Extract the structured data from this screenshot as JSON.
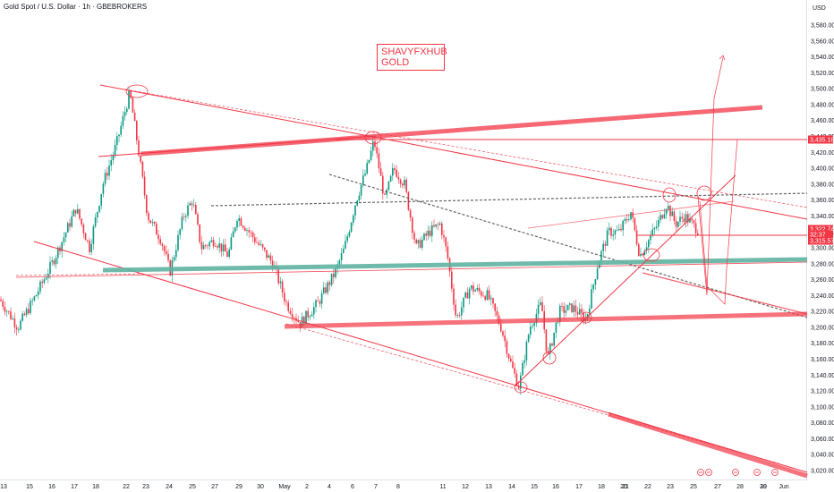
{
  "header": {
    "title": "Gold Spot / U.S. Dollar · 1h · GBEBROKERS"
  },
  "watermark": {
    "line1": "SHAVYFXHUB",
    "line2": "GOLD"
  },
  "colors": {
    "up": "#089981",
    "down": "#f23645",
    "line": "#f23645",
    "teal": "#5fb3a1",
    "grid": "#f0f3fa"
  },
  "chart_data": {
    "type": "candlestick",
    "title": "Gold Spot / U.S. Dollar · 1h · GBEBROKERS",
    "currency": "USD",
    "y_range": [
      3010,
      3600
    ],
    "y_ticks": [
      "3,580.00",
      "3,560.00",
      "3,540.00",
      "3,520.00",
      "3,500.00",
      "3,480.00",
      "3,460.00",
      "3,440.00",
      "3,420.00",
      "3,400.00",
      "3,380.00",
      "3,360.00",
      "3,340.00",
      "3,320.00",
      "3,300.00",
      "3,280.00",
      "3,260.00",
      "3,240.00",
      "3,220.00",
      "3,200.00",
      "3,180.00",
      "3,160.00",
      "3,140.00",
      "3,120.00",
      "3,100.00",
      "3,080.00",
      "3,060.00",
      "3,040.00",
      "3,020.00"
    ],
    "x_ticks": [
      "13",
      "15",
      "16",
      "17",
      "18",
      "22",
      "23",
      "24",
      "25",
      "27",
      "29",
      "30",
      "May",
      "2",
      "4",
      "6",
      "7",
      "8",
      "11",
      "12",
      "13",
      "14",
      "15",
      "16",
      "17",
      "18",
      "20",
      "21",
      "22",
      "23",
      "25",
      "27",
      "28",
      "29",
      "30",
      "Jun"
    ],
    "price_tags": [
      {
        "label": "3,435.18",
        "value": 3435.18
      },
      {
        "label": "3,322.74",
        "value": 3322.74
      },
      {
        "label": "32:37",
        "value": 3313
      },
      {
        "label": "3,315.57",
        "value": 3315.57
      }
    ],
    "key_levels": [
      3500,
      3435.18,
      3350,
      3280,
      3200,
      3120
    ],
    "last_price": 3322.74,
    "grid": false,
    "legend": "none"
  }
}
